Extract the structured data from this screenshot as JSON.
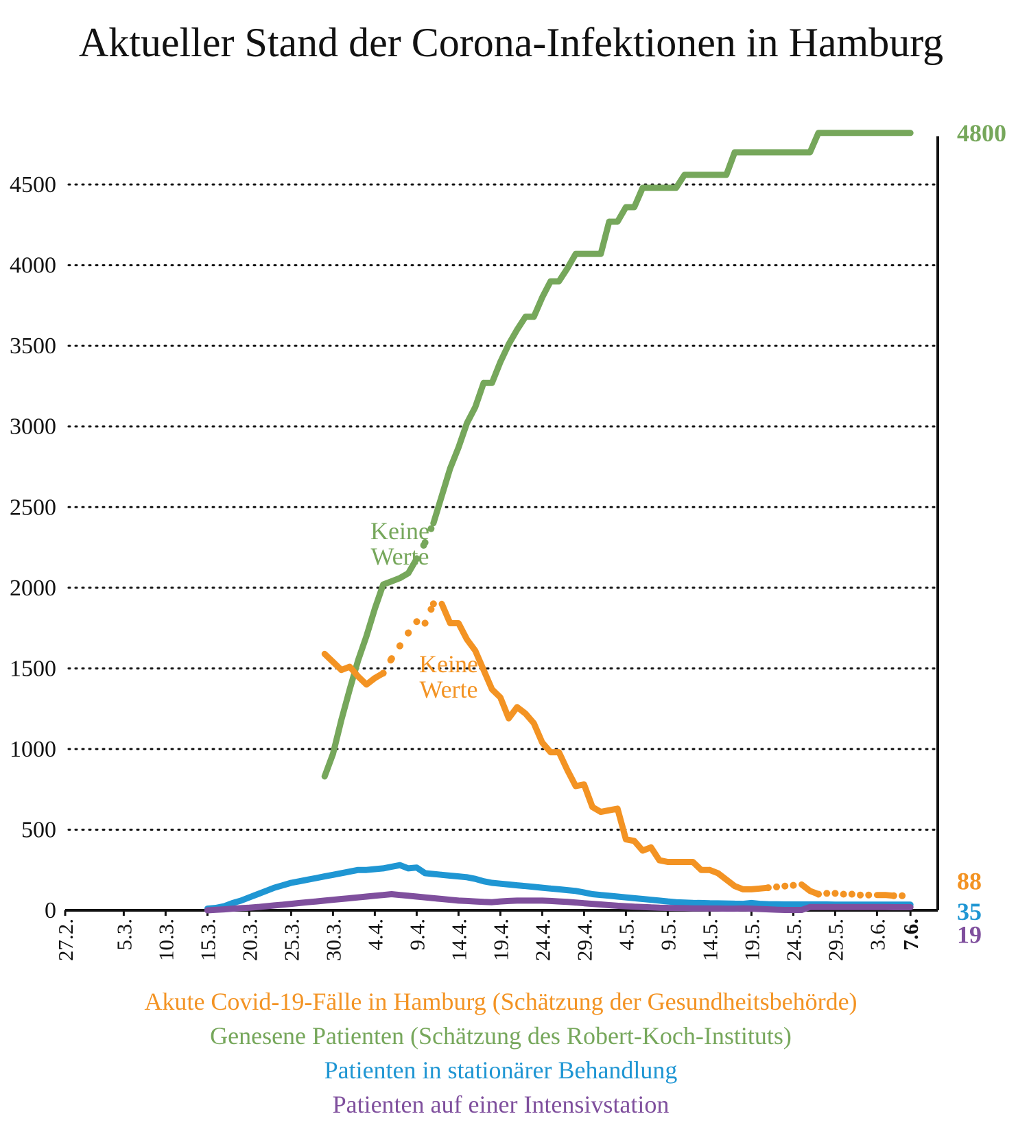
{
  "chart_data": {
    "type": "line",
    "title": "Aktueller Stand der Corona-Infektionen in Hamburg",
    "ylim": [
      0,
      4800
    ],
    "yticks": [
      0,
      500,
      1000,
      1500,
      2000,
      2500,
      3000,
      3500,
      4000,
      4500
    ],
    "ytick_labels": [
      "0",
      "500",
      "1000",
      "1500",
      "2000",
      "2500",
      "3000",
      "3500",
      "4000",
      "4500"
    ],
    "grid": "horizontal-dotted",
    "x_day_range": [
      0,
      101
    ],
    "x_note": "x values are day offsets from 27.2.",
    "xticks": [
      {
        "label": "27.2.",
        "day": 0
      },
      {
        "label": "5.3.",
        "day": 7
      },
      {
        "label": "10.3.",
        "day": 12
      },
      {
        "label": "15.3.",
        "day": 17
      },
      {
        "label": "20.3.",
        "day": 22
      },
      {
        "label": "25.3.",
        "day": 27
      },
      {
        "label": "30.3.",
        "day": 32
      },
      {
        "label": "4.4.",
        "day": 37
      },
      {
        "label": "9.4.",
        "day": 42
      },
      {
        "label": "14.4.",
        "day": 47
      },
      {
        "label": "19.4.",
        "day": 52
      },
      {
        "label": "24.4.",
        "day": 57
      },
      {
        "label": "29.4.",
        "day": 62
      },
      {
        "label": "4.5.",
        "day": 67
      },
      {
        "label": "9.5.",
        "day": 72
      },
      {
        "label": "14.5.",
        "day": 77
      },
      {
        "label": "19.5.",
        "day": 82
      },
      {
        "label": "24.5.",
        "day": 87
      },
      {
        "label": "29.5.",
        "day": 92
      },
      {
        "label": "3.6.",
        "day": 97
      },
      {
        "label": "7.6.",
        "day": 101
      }
    ],
    "series": [
      {
        "name": "Genesene Patienten (Schätzung des Robert-Koch-Instituts)",
        "color": "#76a75b",
        "end_label": "4800",
        "x": [
          31,
          32,
          33,
          34,
          35,
          36,
          37,
          38,
          39,
          40,
          41,
          42,
          43,
          44,
          45,
          46,
          47,
          48,
          49,
          50,
          51,
          52,
          53,
          54,
          55,
          56,
          57,
          58,
          59,
          60,
          61,
          62,
          63,
          64,
          65,
          66,
          67,
          68,
          69,
          70,
          71,
          72,
          73,
          74,
          75,
          76,
          77,
          78,
          79,
          80,
          81,
          82,
          83,
          84,
          85,
          86,
          87,
          88,
          89,
          90,
          91,
          92,
          93,
          94,
          95,
          96,
          97,
          98,
          99,
          100,
          101
        ],
        "y": [
          830,
          970,
          1180,
          1370,
          1550,
          1700,
          1870,
          2020,
          2040,
          2060,
          2090,
          2180,
          2280,
          2400,
          2570,
          2740,
          2870,
          3020,
          3120,
          3270,
          3270,
          3400,
          3510,
          3600,
          3680,
          3680,
          3800,
          3900,
          3900,
          3980,
          4070,
          4070,
          4070,
          4070,
          4270,
          4270,
          4360,
          4360,
          4480,
          4480,
          4480,
          4480,
          4480,
          4560,
          4560,
          4560,
          4560,
          4560,
          4560,
          4700,
          4700,
          4700,
          4700,
          4700,
          4700,
          4700,
          4700,
          4700,
          4700,
          4820,
          4820,
          4820,
          4820,
          4820,
          4820,
          4820,
          4820,
          4820,
          4820,
          4820,
          4820
        ],
        "dotted_segments": [
          [
            42,
            44
          ]
        ]
      },
      {
        "name": "Akute Covid-19-Fälle in Hamburg (Schätzung der Gesundheitsbehörde)",
        "color": "#f39323",
        "end_label": "88",
        "x": [
          31,
          32,
          33,
          34,
          35,
          36,
          37,
          38,
          39,
          40,
          41,
          42,
          43,
          44,
          45,
          46,
          47,
          48,
          49,
          50,
          51,
          52,
          53,
          54,
          55,
          56,
          57,
          58,
          59,
          60,
          61,
          62,
          63,
          64,
          65,
          66,
          67,
          68,
          69,
          70,
          71,
          72,
          73,
          74,
          75,
          76,
          77,
          78,
          79,
          80,
          81,
          82,
          83,
          84,
          85,
          86,
          87,
          88,
          89,
          90,
          91,
          92,
          93,
          94,
          95,
          96,
          97,
          98,
          99,
          100,
          101
        ],
        "y": [
          1590,
          1540,
          1490,
          1510,
          1450,
          1400,
          1440,
          1470,
          1560,
          1640,
          1720,
          1790,
          1780,
          1900,
          1900,
          1780,
          1780,
          1680,
          1610,
          1490,
          1370,
          1320,
          1190,
          1260,
          1220,
          1160,
          1040,
          980,
          980,
          870,
          770,
          780,
          640,
          610,
          620,
          630,
          440,
          430,
          370,
          390,
          310,
          300,
          300,
          300,
          300,
          250,
          250,
          230,
          190,
          150,
          130,
          130,
          135,
          140,
          145,
          150,
          155,
          160,
          120,
          100,
          105,
          105,
          100,
          100,
          95,
          95,
          95,
          95,
          90,
          90,
          88
        ],
        "dotted_segments": [
          [
            38,
            45
          ],
          [
            84,
            88
          ],
          [
            90,
            97
          ],
          [
            99,
            101
          ]
        ]
      },
      {
        "name": "Patienten in stationärer Behandlung",
        "color": "#1f96d3",
        "end_label": "35",
        "x": [
          17,
          18,
          19,
          20,
          21,
          22,
          23,
          24,
          25,
          26,
          27,
          28,
          29,
          30,
          31,
          32,
          33,
          34,
          35,
          36,
          37,
          38,
          39,
          40,
          41,
          42,
          43,
          44,
          45,
          46,
          47,
          48,
          49,
          50,
          51,
          52,
          53,
          54,
          55,
          56,
          57,
          58,
          59,
          60,
          61,
          62,
          63,
          64,
          65,
          66,
          67,
          68,
          69,
          70,
          71,
          72,
          73,
          74,
          75,
          76,
          77,
          78,
          79,
          80,
          81,
          82,
          83,
          84,
          85,
          86,
          87,
          88,
          89,
          90,
          91,
          92,
          93,
          94,
          95,
          96,
          97,
          98,
          99,
          100,
          101
        ],
        "y": [
          10,
          15,
          25,
          45,
          60,
          80,
          100,
          120,
          140,
          155,
          170,
          180,
          190,
          200,
          210,
          220,
          230,
          240,
          250,
          250,
          255,
          260,
          270,
          280,
          260,
          265,
          230,
          225,
          220,
          215,
          210,
          205,
          195,
          180,
          170,
          165,
          160,
          155,
          150,
          145,
          140,
          135,
          130,
          125,
          120,
          110,
          100,
          95,
          90,
          85,
          80,
          75,
          70,
          65,
          60,
          55,
          50,
          48,
          46,
          45,
          44,
          43,
          42,
          41,
          40,
          45,
          40,
          38,
          37,
          36,
          36,
          36,
          36,
          36,
          36,
          35,
          35,
          35,
          35,
          35,
          35,
          35,
          35,
          35,
          35
        ],
        "dotted_segments": []
      },
      {
        "name": "Patienten auf einer Intensivstation",
        "color": "#7f4f9d",
        "end_label": "19",
        "x": [
          17,
          18,
          19,
          20,
          21,
          22,
          23,
          24,
          25,
          26,
          27,
          28,
          29,
          30,
          31,
          32,
          33,
          34,
          35,
          36,
          37,
          38,
          39,
          40,
          41,
          42,
          43,
          44,
          45,
          46,
          47,
          48,
          49,
          50,
          51,
          52,
          53,
          54,
          55,
          56,
          57,
          58,
          59,
          60,
          61,
          62,
          63,
          64,
          65,
          66,
          67,
          68,
          69,
          70,
          71,
          72,
          73,
          74,
          75,
          76,
          77,
          78,
          79,
          80,
          81,
          82,
          83,
          84,
          85,
          86,
          87,
          88,
          89,
          90,
          91,
          92,
          93,
          94,
          95,
          96,
          97,
          98,
          99,
          100,
          101
        ],
        "y": [
          0,
          3,
          6,
          10,
          13,
          16,
          20,
          25,
          30,
          35,
          40,
          45,
          50,
          55,
          60,
          65,
          70,
          75,
          80,
          85,
          90,
          95,
          100,
          95,
          90,
          85,
          80,
          75,
          70,
          65,
          60,
          58,
          55,
          52,
          50,
          55,
          58,
          60,
          60,
          60,
          60,
          58,
          55,
          52,
          48,
          44,
          40,
          36,
          32,
          28,
          25,
          22,
          20,
          18,
          16,
          15,
          14,
          13,
          12,
          12,
          11,
          11,
          10,
          10,
          12,
          10,
          8,
          6,
          4,
          2,
          2,
          2,
          20,
          20,
          20,
          20,
          20,
          20,
          20,
          20,
          20,
          20,
          19,
          19,
          19
        ],
        "dotted_segments": []
      }
    ],
    "annotations": [
      {
        "text": [
          "Keine",
          "Werte"
        ],
        "color": "#76a75b",
        "series": 0
      },
      {
        "text": [
          "Keine",
          "Werte"
        ],
        "color": "#f39323",
        "series": 1
      }
    ]
  },
  "legend": [
    {
      "text": "Akute Covid-19-Fälle in Hamburg (Schätzung der Gesundheitsbehörde)",
      "color": "#f39323"
    },
    {
      "text": "Genesene Patienten (Schätzung des Robert-Koch-Instituts)",
      "color": "#76a75b"
    },
    {
      "text": "Patienten in stationärer Behandlung",
      "color": "#1f96d3"
    },
    {
      "text": "Patienten auf einer Intensivstation",
      "color": "#7f4f9d"
    }
  ]
}
